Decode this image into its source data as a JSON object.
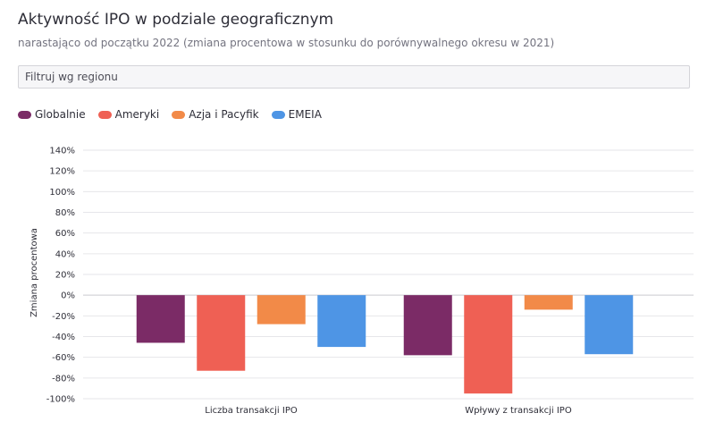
{
  "header": {
    "title": "Aktywność IPO w podziale geograficznym",
    "subtitle": "narastająco od początku 2022 (zmiana procentowa w stosunku do porównywalnego okresu w 2021)"
  },
  "filter": {
    "label": "Filtruj wg regionu"
  },
  "chart_data": {
    "type": "bar",
    "title": "Aktywność IPO w podziale geograficznym",
    "subtitle": "narastająco od początku 2022 (zmiana procentowa w stosunku do porównywalnego okresu w 2021)",
    "xlabel": "",
    "ylabel": "Zmiana procentowa",
    "categories": [
      "Liczba transakcji IPO",
      "Wpływy z transakcji IPO"
    ],
    "ylim": [
      -100,
      140
    ],
    "yticks": [
      140,
      120,
      100,
      80,
      60,
      40,
      20,
      0,
      -20,
      -40,
      -60,
      -80,
      -100
    ],
    "ytick_labels": [
      "140%",
      "120%",
      "100%",
      "80%",
      "60%",
      "40%",
      "20%",
      "0%",
      "-20%",
      "-40%",
      "-60%",
      "-80%",
      "-100%"
    ],
    "grid": true,
    "legend_position": "top-left",
    "series": [
      {
        "name": "Globalnie",
        "color": "#7b2b66",
        "values": [
          -46,
          -58
        ]
      },
      {
        "name": "Ameryki",
        "color": "#ef6054",
        "values": [
          -73,
          -95
        ]
      },
      {
        "name": "Azja i Pacyfik",
        "color": "#f28a48",
        "values": [
          -28,
          -14
        ]
      },
      {
        "name": "EMEIA",
        "color": "#4e95e5",
        "values": [
          -50,
          -57
        ]
      }
    ]
  }
}
